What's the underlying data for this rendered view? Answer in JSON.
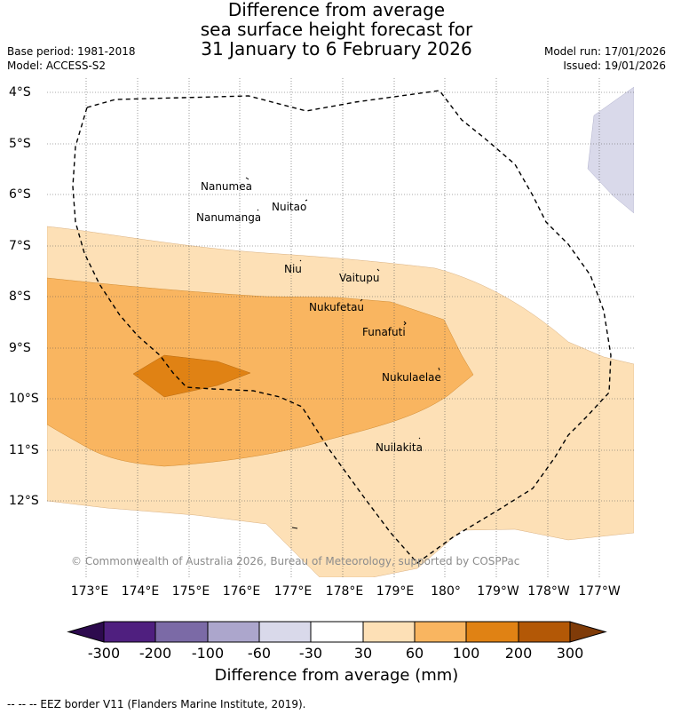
{
  "title": {
    "line1": "Difference from average",
    "line2": "sea surface height forecast for",
    "line3": "31 January to 6 February 2026"
  },
  "meta": {
    "base_period": "Base period: 1981-2018",
    "model": "Model: ACCESS-S2",
    "model_run": "Model run: 17/01/2026",
    "issued": "Issued: 19/01/2026"
  },
  "axes": {
    "lat_labels": [
      "4°S",
      "5°S",
      "6°S",
      "7°S",
      "8°S",
      "9°S",
      "10°S",
      "11°S",
      "12°S"
    ],
    "lon_labels": [
      "173°E",
      "174°E",
      "175°E",
      "176°E",
      "177°E",
      "178°E",
      "179°E",
      "180°",
      "179°W",
      "178°W",
      "177°W"
    ]
  },
  "places": [
    "Nanumea",
    "Nuitao",
    "Nanumanga",
    "Niu",
    "Vaitupu",
    "Nukufetau",
    "Funafuti",
    "Nukulaelae",
    "Nuilakita"
  ],
  "copyright": "© Commonwealth of Australia 2026, Bureau of Meteorology, supported by COSPPac",
  "colorbar": {
    "ticks": [
      "-300",
      "-200",
      "-100",
      "-60",
      "-30",
      "30",
      "60",
      "100",
      "200",
      "300"
    ],
    "colors": {
      "under": "#2d0a4e",
      "bins": [
        "#4f1f7f",
        "#7b6aa6",
        "#aca6cc",
        "#d9d9ea",
        "#ffffff",
        "#fde0b6",
        "#f9b560",
        "#e08214",
        "#b35806"
      ],
      "over": "#7f3b08"
    },
    "label": "Difference from average (mm)"
  },
  "footnote": "--  --  -- EEZ border V11 (Flanders Marine Institute, 2019)."
}
